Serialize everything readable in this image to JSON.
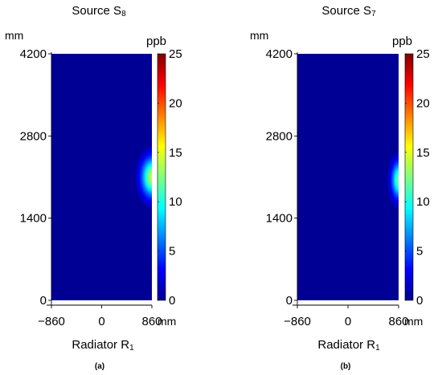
{
  "figure": {
    "panels": [
      {
        "caption": "(a)",
        "title_main": "Source S",
        "title_sub": "8",
        "y_unit": "mm",
        "x_unit": "mm",
        "cbar_unit": "ppb",
        "xlabel_main": "Radiator R",
        "xlabel_sub": "1"
      },
      {
        "caption": "(b)",
        "title_main": "Source S",
        "title_sub": "7",
        "y_unit": "mm",
        "x_unit": "mm",
        "cbar_unit": "ppb",
        "xlabel_main": "Radiator R",
        "xlabel_sub": "1"
      }
    ]
  },
  "chart_data": [
    {
      "type": "heatmap",
      "title": "Source S8",
      "xlabel": "Radiator R1",
      "ylabel": "",
      "x_unit": "mm",
      "y_unit": "mm",
      "xlim": [
        -860,
        860
      ],
      "ylim": [
        0,
        4200
      ],
      "x_ticks": [
        -860,
        0,
        860
      ],
      "x_tick_labels": [
        "−860",
        "0",
        "860"
      ],
      "y_ticks": [
        0,
        1400,
        2800,
        4200
      ],
      "y_tick_labels": [
        "0",
        "1400",
        "2800",
        "4200"
      ],
      "colorbar": {
        "label": "ppb",
        "range": [
          0,
          25
        ],
        "ticks": [
          0,
          5,
          10,
          15,
          20,
          25
        ],
        "colormap": "jet"
      },
      "background_value": 0.5,
      "hotspot": {
        "x": 860,
        "y": 2100,
        "peak": 14,
        "x_extent": 300,
        "y_extent": 560
      },
      "grid": false
    },
    {
      "type": "heatmap",
      "title": "Source S7",
      "xlabel": "Radiator R1",
      "ylabel": "",
      "x_unit": "mm",
      "y_unit": "mm",
      "xlim": [
        -860,
        860
      ],
      "ylim": [
        0,
        4200
      ],
      "x_ticks": [
        -860,
        0,
        860
      ],
      "x_tick_labels": [
        "−860",
        "0",
        "860"
      ],
      "y_ticks": [
        0,
        1400,
        2800,
        4200
      ],
      "y_tick_labels": [
        "0",
        "1400",
        "2800",
        "4200"
      ],
      "colorbar": {
        "label": "ppb",
        "range": [
          0,
          25
        ],
        "ticks": [
          0,
          5,
          10,
          15,
          20,
          25
        ],
        "colormap": "jet"
      },
      "background_value": 0.5,
      "hotspot": {
        "x": 860,
        "y": 2050,
        "peak": 12,
        "x_extent": 200,
        "y_extent": 520
      },
      "grid": false
    }
  ]
}
